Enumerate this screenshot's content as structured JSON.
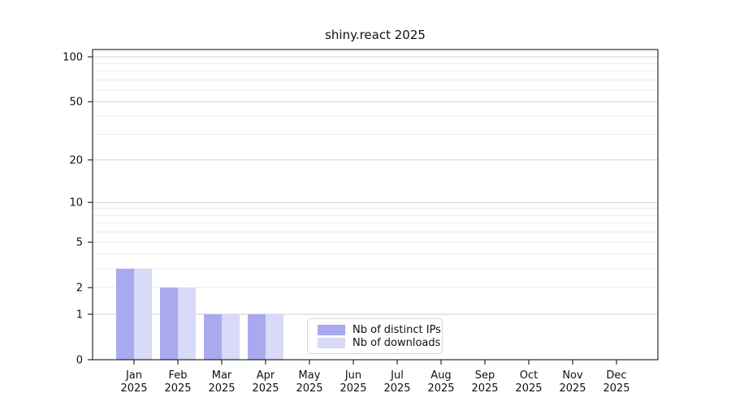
{
  "chart_data": {
    "type": "bar",
    "title": "shiny.react 2025",
    "categories": [
      "Jan",
      "Feb",
      "Mar",
      "Apr",
      "May",
      "Jun",
      "Jul",
      "Aug",
      "Sep",
      "Oct",
      "Nov",
      "Dec"
    ],
    "year_label": "2025",
    "series": [
      {
        "name": "Nb of distinct IPs",
        "color": "#a9a9f0",
        "values": [
          3,
          2,
          1,
          1,
          0,
          0,
          0,
          0,
          0,
          0,
          0,
          0
        ]
      },
      {
        "name": "Nb of downloads",
        "color": "#d9d9f8",
        "values": [
          3,
          2,
          1,
          1,
          0,
          0,
          0,
          0,
          0,
          0,
          0,
          0
        ]
      }
    ],
    "xlabel": "",
    "ylabel": "",
    "yscale": "log1p",
    "ylim": [
      0,
      112
    ],
    "ytick_labels": [
      100,
      50,
      20,
      10,
      5,
      2,
      1,
      0
    ],
    "grid_major_values": [
      1,
      10,
      20,
      50,
      100
    ],
    "grid_minor_values": [
      2,
      3,
      4,
      5,
      6,
      7,
      8,
      9,
      30,
      40,
      60,
      70,
      80,
      90
    ],
    "grid": "on",
    "legend_position": "lower center"
  },
  "colors": {
    "background": "#ffffff",
    "axis": "#000000",
    "text": "#111111",
    "grid_major": "#cfcfcf",
    "grid_minor": "#ebebeb"
  }
}
